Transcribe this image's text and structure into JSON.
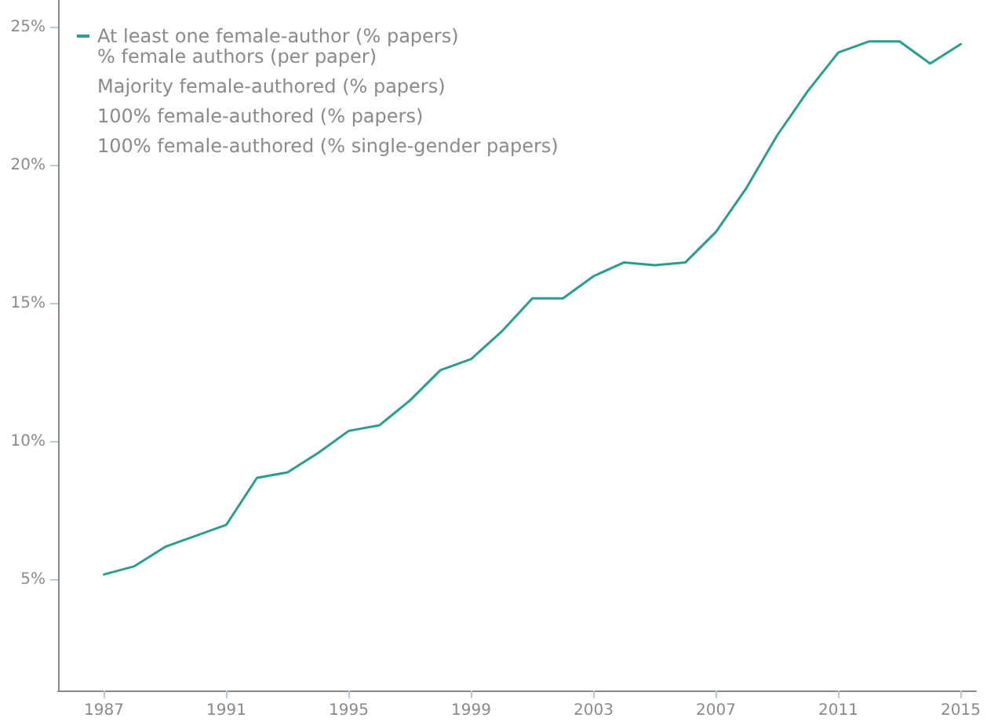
{
  "chart_data": {
    "type": "line",
    "x": [
      1987,
      1988,
      1989,
      1990,
      1991,
      1992,
      1993,
      1994,
      1995,
      1996,
      1997,
      1998,
      1999,
      2000,
      2001,
      2002,
      2003,
      2004,
      2005,
      2006,
      2007,
      2008,
      2009,
      2010,
      2011,
      2012,
      2013,
      2014,
      2015
    ],
    "series": [
      {
        "name": "At least one female-author (% papers)",
        "color": "#2a9d8c",
        "values": [
          5.2,
          5.5,
          6.2,
          6.6,
          7.0,
          8.7,
          8.9,
          9.6,
          10.4,
          10.6,
          11.5,
          12.6,
          13.0,
          14.0,
          15.2,
          15.2,
          16.0,
          16.5,
          16.4,
          16.5,
          17.6,
          19.2,
          21.1,
          22.7,
          24.1,
          24.5,
          24.5,
          23.7,
          24.4
        ]
      }
    ],
    "annotations": [
      "% female authors (per paper)",
      "Majority female-authored (% papers)",
      "100% female-authored (% papers)",
      "100% female-authored (% single-gender papers)"
    ],
    "xlim": [
      1985.5,
      2015.5
    ],
    "xticks": [
      1987,
      1991,
      1995,
      1999,
      2003,
      2007,
      2011,
      2015
    ],
    "ylim": [
      1,
      26
    ],
    "yticks": [
      {
        "value": 5,
        "label": "5%"
      },
      {
        "value": 10,
        "label": "10%"
      },
      {
        "value": 15,
        "label": "15%"
      },
      {
        "value": 20,
        "label": "20%"
      },
      {
        "value": 25,
        "label": "25%"
      }
    ],
    "grid": false,
    "legend": "top left",
    "marker": "none",
    "line_style": "solid"
  }
}
